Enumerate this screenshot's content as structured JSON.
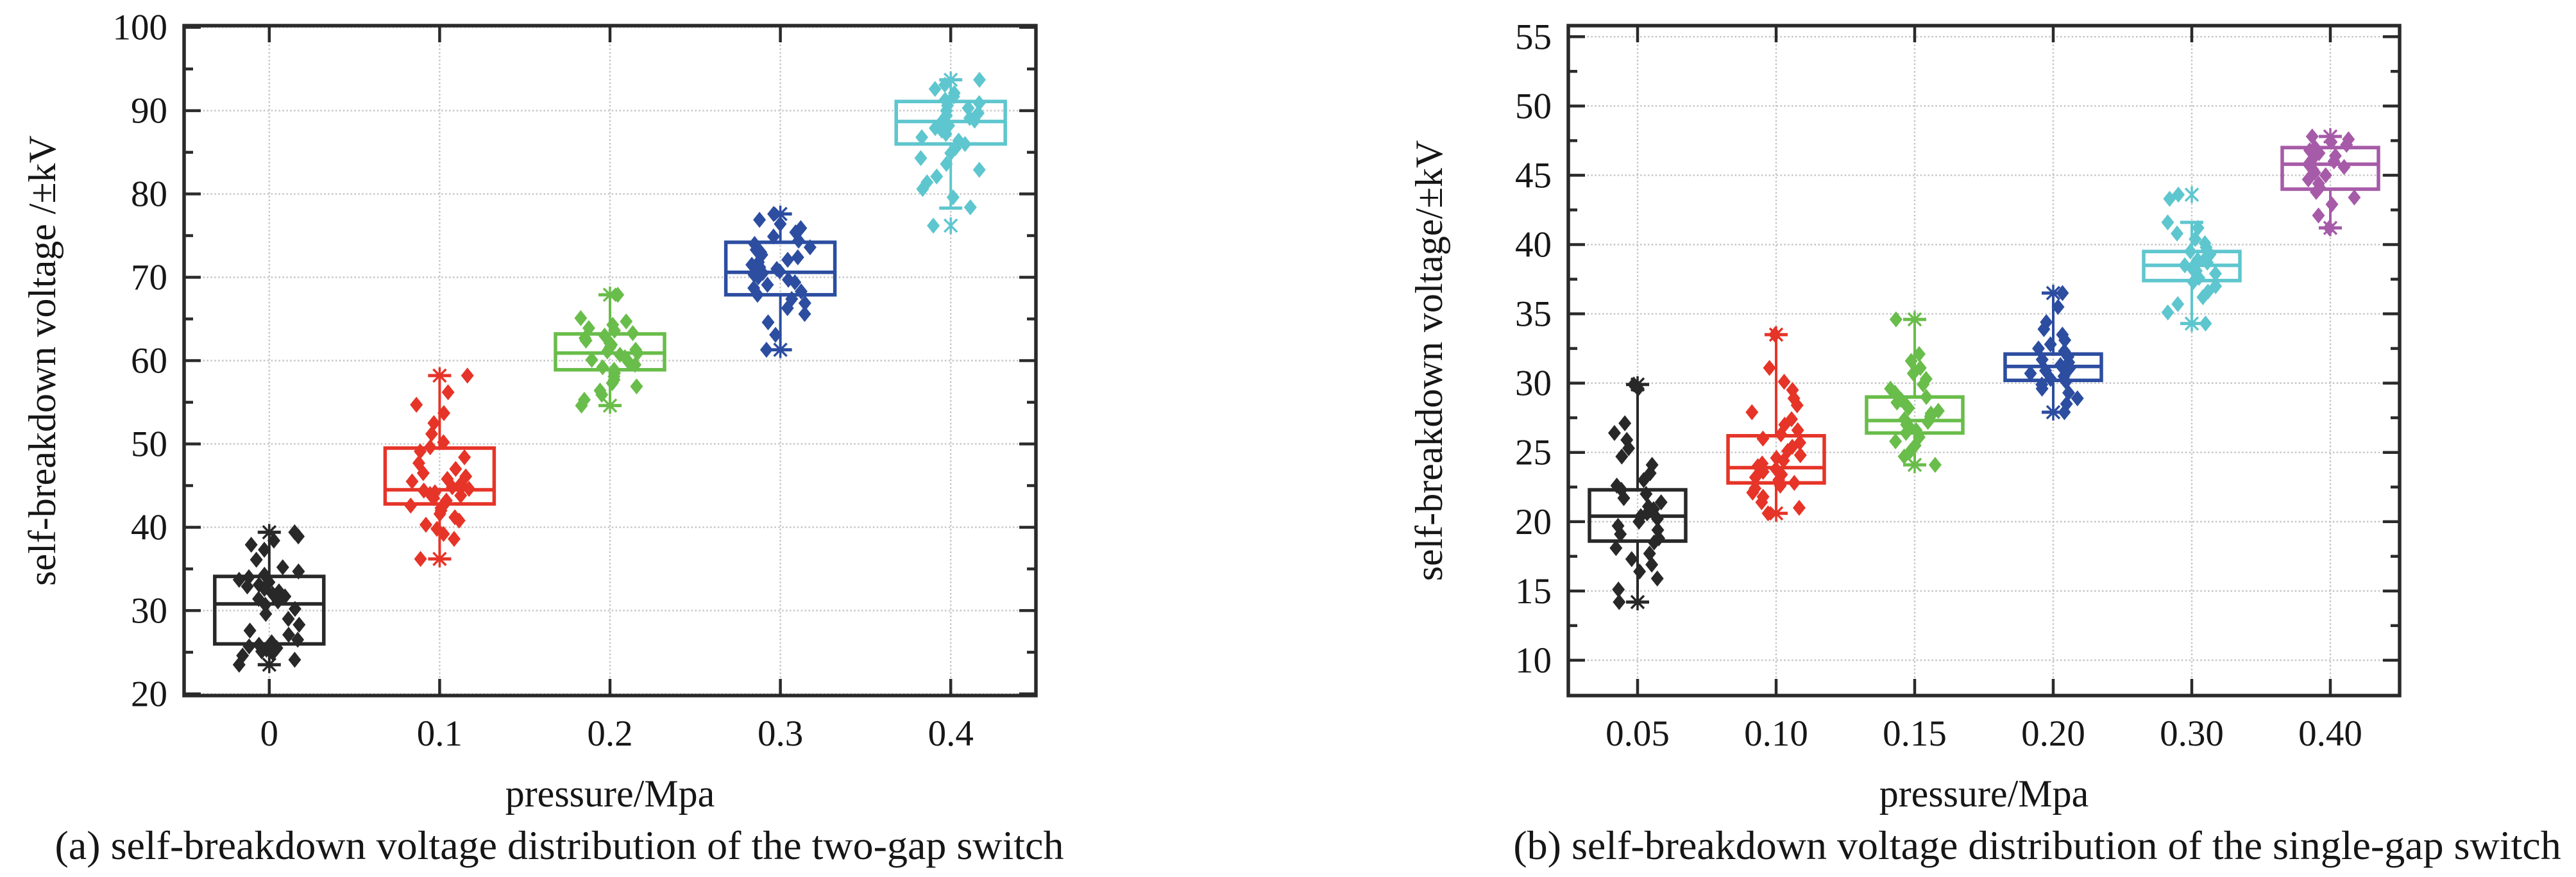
{
  "page": {
    "background": "#ffffff",
    "axis_color": "#2a2a2a",
    "grid_color": "#c3c3c3"
  },
  "chart_data": [
    {
      "type": "box",
      "panel": "a",
      "caption": "(a) self-breakdown voltage distribution of the two-gap switch",
      "xlabel": "pressure/Mpa",
      "ylabel": "self-breakdown voltage /±kV",
      "categories": [
        "0",
        "0.1",
        "0.2",
        "0.3",
        "0.4"
      ],
      "ylim": [
        19.8,
        100.2
      ],
      "yticks": {
        "major_start": 20,
        "major_end": 100,
        "major_step": 10,
        "minor_step": 5
      },
      "grid": true,
      "legend": "none",
      "series": [
        {
          "category": "0",
          "color": "#282828",
          "box": {
            "q1": 26.0,
            "median": 30.8,
            "q3": 34.1,
            "whisker_low": 23.5,
            "whisker_high": 39.4
          },
          "points": [
            23.5,
            24.1,
            24.6,
            24.9,
            25.1,
            25.3,
            25.5,
            25.7,
            25.9,
            26.2,
            26.5,
            27.1,
            27.6,
            28.3,
            29.0,
            29.6,
            30.2,
            30.7,
            31.1,
            31.4,
            31.7,
            32.0,
            32.3,
            32.6,
            32.9,
            33.1,
            33.4,
            33.7,
            34.0,
            34.3,
            34.7,
            35.2,
            36.1,
            37.3,
            37.9,
            38.4,
            38.9,
            39.4
          ]
        },
        {
          "category": "0.1",
          "color": "#e63428",
          "box": {
            "q1": 42.8,
            "median": 44.5,
            "q3": 49.5,
            "whisker_low": 36.2,
            "whisker_high": 58.2
          },
          "points": [
            36.2,
            38.6,
            39.2,
            39.8,
            40.3,
            40.8,
            41.2,
            41.6,
            42.0,
            42.3,
            42.6,
            42.9,
            43.2,
            43.5,
            43.8,
            44.0,
            44.2,
            44.4,
            44.6,
            44.8,
            45.0,
            45.2,
            45.5,
            45.8,
            46.1,
            46.5,
            47.0,
            47.7,
            48.4,
            49.1,
            49.6,
            50.2,
            51.2,
            52.5,
            53.7,
            54.7,
            56.2,
            58.2
          ]
        },
        {
          "category": "0.2",
          "color": "#69bd4a",
          "box": {
            "q1": 58.9,
            "median": 60.9,
            "q3": 63.2,
            "whisker_low": 54.6,
            "whisker_high": 67.9
          },
          "points": [
            54.6,
            55.3,
            55.9,
            56.4,
            56.9,
            57.3,
            57.7,
            58.1,
            58.5,
            58.9,
            59.2,
            59.5,
            59.8,
            60.1,
            60.4,
            60.7,
            60.9,
            61.1,
            61.3,
            61.6,
            61.9,
            62.1,
            62.4,
            62.7,
            63.0,
            63.3,
            63.6,
            63.9,
            64.3,
            64.7,
            65.1,
            67.9
          ]
        },
        {
          "category": "0.3",
          "color": "#2c4da0",
          "box": {
            "q1": 67.9,
            "median": 70.6,
            "q3": 74.2,
            "whisker_low": 61.3,
            "whisker_high": 77.6
          },
          "points": [
            61.3,
            63.1,
            64.6,
            65.6,
            66.3,
            66.9,
            67.4,
            67.9,
            68.3,
            68.7,
            69.1,
            69.4,
            69.7,
            70.0,
            70.3,
            70.5,
            70.7,
            71.0,
            71.2,
            71.5,
            71.8,
            72.1,
            72.4,
            72.7,
            73.0,
            73.3,
            73.6,
            74.0,
            74.4,
            74.9,
            75.4,
            75.9,
            76.4,
            76.9,
            77.6
          ]
        },
        {
          "category": "0.4",
          "color": "#5ec6ce",
          "box": {
            "q1": 86.0,
            "median": 88.7,
            "q3": 91.1,
            "whisker_low": 78.3,
            "whisker_high": 93.7
          },
          "points": [
            76.2,
            78.4,
            79.6,
            80.6,
            81.4,
            82.1,
            82.9,
            83.6,
            84.3,
            84.9,
            85.5,
            86.0,
            86.4,
            86.8,
            87.2,
            87.6,
            87.9,
            88.2,
            88.5,
            88.8,
            89.1,
            89.4,
            89.7,
            90.0,
            90.3,
            90.6,
            90.9,
            91.3,
            91.7,
            92.1,
            92.6,
            93.1,
            93.7
          ]
        }
      ]
    },
    {
      "type": "box",
      "panel": "b",
      "caption": "(b) self-breakdown voltage distribution of the single-gap switch",
      "xlabel": "pressure/Mpa",
      "ylabel": "self-breakdown voltage/±kV",
      "categories": [
        "0.05",
        "0.10",
        "0.15",
        "0.20",
        "0.30",
        "0.40"
      ],
      "ylim": [
        7.45,
        55.8
      ],
      "yticks": {
        "major_start": 10,
        "major_end": 55,
        "major_step": 5,
        "minor_step": 2.5
      },
      "grid": true,
      "legend": "none",
      "series": [
        {
          "category": "0.05",
          "color": "#282828",
          "box": {
            "q1": 18.6,
            "median": 20.4,
            "q3": 22.3,
            "whisker_low": 14.2,
            "whisker_high": 29.9
          },
          "points": [
            14.2,
            15.1,
            15.9,
            16.4,
            16.9,
            17.3,
            17.7,
            18.1,
            18.5,
            18.8,
            19.1,
            19.4,
            19.7,
            20.0,
            20.2,
            20.4,
            20.6,
            20.9,
            21.1,
            21.4,
            21.7,
            22.0,
            22.3,
            22.6,
            23.0,
            23.5,
            24.1,
            24.7,
            25.3,
            25.9,
            26.4,
            27.1,
            29.6,
            29.9
          ]
        },
        {
          "category": "0.10",
          "color": "#e63428",
          "box": {
            "q1": 22.8,
            "median": 23.9,
            "q3": 26.2,
            "whisker_low": 20.6,
            "whisker_high": 33.5
          },
          "points": [
            20.6,
            21.0,
            21.4,
            21.8,
            22.1,
            22.4,
            22.6,
            22.8,
            23.0,
            23.2,
            23.4,
            23.6,
            23.8,
            24.0,
            24.2,
            24.4,
            24.6,
            24.8,
            25.1,
            25.4,
            25.7,
            26.0,
            26.3,
            26.6,
            27.0,
            27.4,
            27.9,
            28.4,
            28.9,
            29.5,
            30.1,
            31.1,
            33.5
          ]
        },
        {
          "category": "0.15",
          "color": "#69bd4a",
          "box": {
            "q1": 26.4,
            "median": 27.3,
            "q3": 29.0,
            "whisker_low": 24.1,
            "whisker_high": 34.6
          },
          "points": [
            24.1,
            24.7,
            25.1,
            25.5,
            25.8,
            26.1,
            26.4,
            26.6,
            26.8,
            27.0,
            27.2,
            27.4,
            27.6,
            27.8,
            28.0,
            28.2,
            28.4,
            28.6,
            28.8,
            29.0,
            29.3,
            29.6,
            29.9,
            30.3,
            30.7,
            31.1,
            31.6,
            32.1,
            34.6
          ]
        },
        {
          "category": "0.20",
          "color": "#2c4da0",
          "box": {
            "q1": 30.2,
            "median": 31.2,
            "q3": 32.1,
            "whisker_low": 27.9,
            "whisker_high": 36.5
          },
          "points": [
            27.9,
            28.5,
            28.9,
            29.3,
            29.6,
            29.9,
            30.1,
            30.3,
            30.5,
            30.7,
            30.9,
            31.1,
            31.3,
            31.5,
            31.7,
            31.9,
            32.1,
            32.3,
            32.5,
            32.8,
            33.1,
            33.5,
            33.9,
            34.4,
            35.5,
            36.5
          ]
        },
        {
          "category": "0.30",
          "color": "#5ec6ce",
          "box": {
            "q1": 37.4,
            "median": 38.5,
            "q3": 39.5,
            "whisker_low": 34.3,
            "whisker_high": 41.6
          },
          "points": [
            34.3,
            35.1,
            35.7,
            36.2,
            36.6,
            37.0,
            37.3,
            37.6,
            37.9,
            38.1,
            38.3,
            38.5,
            38.7,
            38.9,
            39.1,
            39.3,
            39.5,
            39.8,
            40.1,
            40.4,
            40.8,
            41.2,
            41.6,
            43.3,
            43.6
          ]
        },
        {
          "category": "0.40",
          "color": "#a65ba8",
          "box": {
            "q1": 44.0,
            "median": 45.8,
            "q3": 47.0,
            "whisker_low": 41.2,
            "whisker_high": 47.8
          },
          "points": [
            41.2,
            42.1,
            42.9,
            43.4,
            43.8,
            44.1,
            44.4,
            44.7,
            45.0,
            45.2,
            45.4,
            45.6,
            45.8,
            46.0,
            46.2,
            46.4,
            46.6,
            46.8,
            47.0,
            47.2,
            47.4,
            47.6,
            47.8
          ]
        }
      ]
    }
  ]
}
